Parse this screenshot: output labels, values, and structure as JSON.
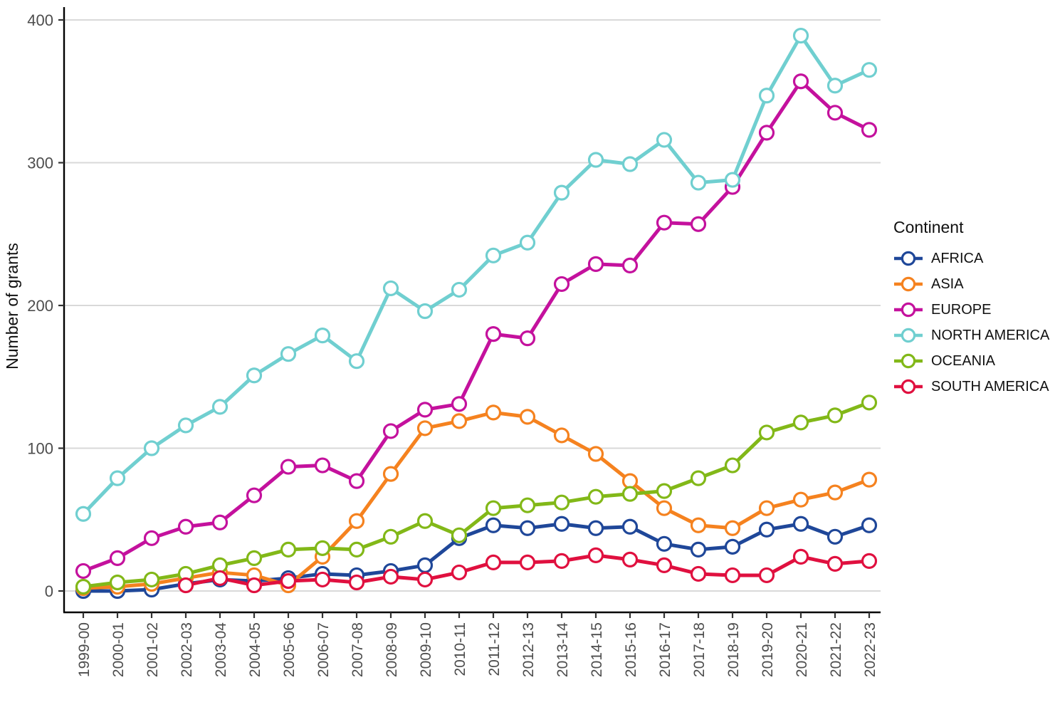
{
  "chart_data": {
    "type": "line",
    "title": "",
    "xlabel": "",
    "ylabel": "Number of grants",
    "legend_title": "Continent",
    "legend_position": "right",
    "grid": "horizontal",
    "marker": "open-circle",
    "ylim": [
      0,
      400
    ],
    "yticks": [
      0,
      100,
      200,
      300,
      400
    ],
    "categories": [
      "1999-00",
      "2000-01",
      "2001-02",
      "2002-03",
      "2003-04",
      "2004-05",
      "2005-06",
      "2006-07",
      "2007-08",
      "2008-09",
      "2009-10",
      "2010-11",
      "2011-12",
      "2012-13",
      "2013-14",
      "2014-15",
      "2015-16",
      "2016-17",
      "2017-18",
      "2018-19",
      "2019-20",
      "2020-21",
      "2021-22",
      "2022-23"
    ],
    "series": [
      {
        "name": "AFRICA",
        "color": "#1f4799",
        "values": [
          0,
          0,
          1,
          5,
          8,
          7,
          9,
          12,
          11,
          14,
          18,
          37,
          46,
          44,
          47,
          44,
          45,
          33,
          29,
          31,
          43,
          47,
          38,
          46
        ]
      },
      {
        "name": "ASIA",
        "color": "#f5821f",
        "values": [
          2,
          3,
          5,
          9,
          13,
          11,
          4,
          24,
          49,
          82,
          114,
          119,
          125,
          122,
          109,
          96,
          77,
          58,
          46,
          44,
          58,
          64,
          69,
          78
        ]
      },
      {
        "name": "EUROPE",
        "color": "#c4119d",
        "values": [
          14,
          23,
          37,
          45,
          48,
          67,
          87,
          88,
          77,
          112,
          127,
          131,
          180,
          177,
          215,
          229,
          228,
          258,
          257,
          283,
          321,
          357,
          335,
          323
        ]
      },
      {
        "name": "NORTH AMERICA",
        "color": "#70cfd0",
        "values": [
          54,
          79,
          100,
          116,
          129,
          151,
          166,
          179,
          161,
          212,
          196,
          211,
          235,
          244,
          279,
          302,
          299,
          316,
          286,
          288,
          347,
          389,
          354,
          365
        ]
      },
      {
        "name": "OCEANIA",
        "color": "#82b818",
        "values": [
          3,
          6,
          8,
          12,
          18,
          23,
          29,
          30,
          29,
          38,
          49,
          39,
          58,
          60,
          62,
          66,
          68,
          70,
          79,
          88,
          111,
          118,
          123,
          132
        ]
      },
      {
        "name": "SOUTH AMERICA",
        "color": "#e0103f",
        "values": [
          null,
          null,
          null,
          4,
          9,
          4,
          7,
          8,
          6,
          10,
          8,
          13,
          20,
          20,
          21,
          25,
          22,
          18,
          12,
          11,
          11,
          24,
          19,
          21
        ]
      }
    ]
  }
}
